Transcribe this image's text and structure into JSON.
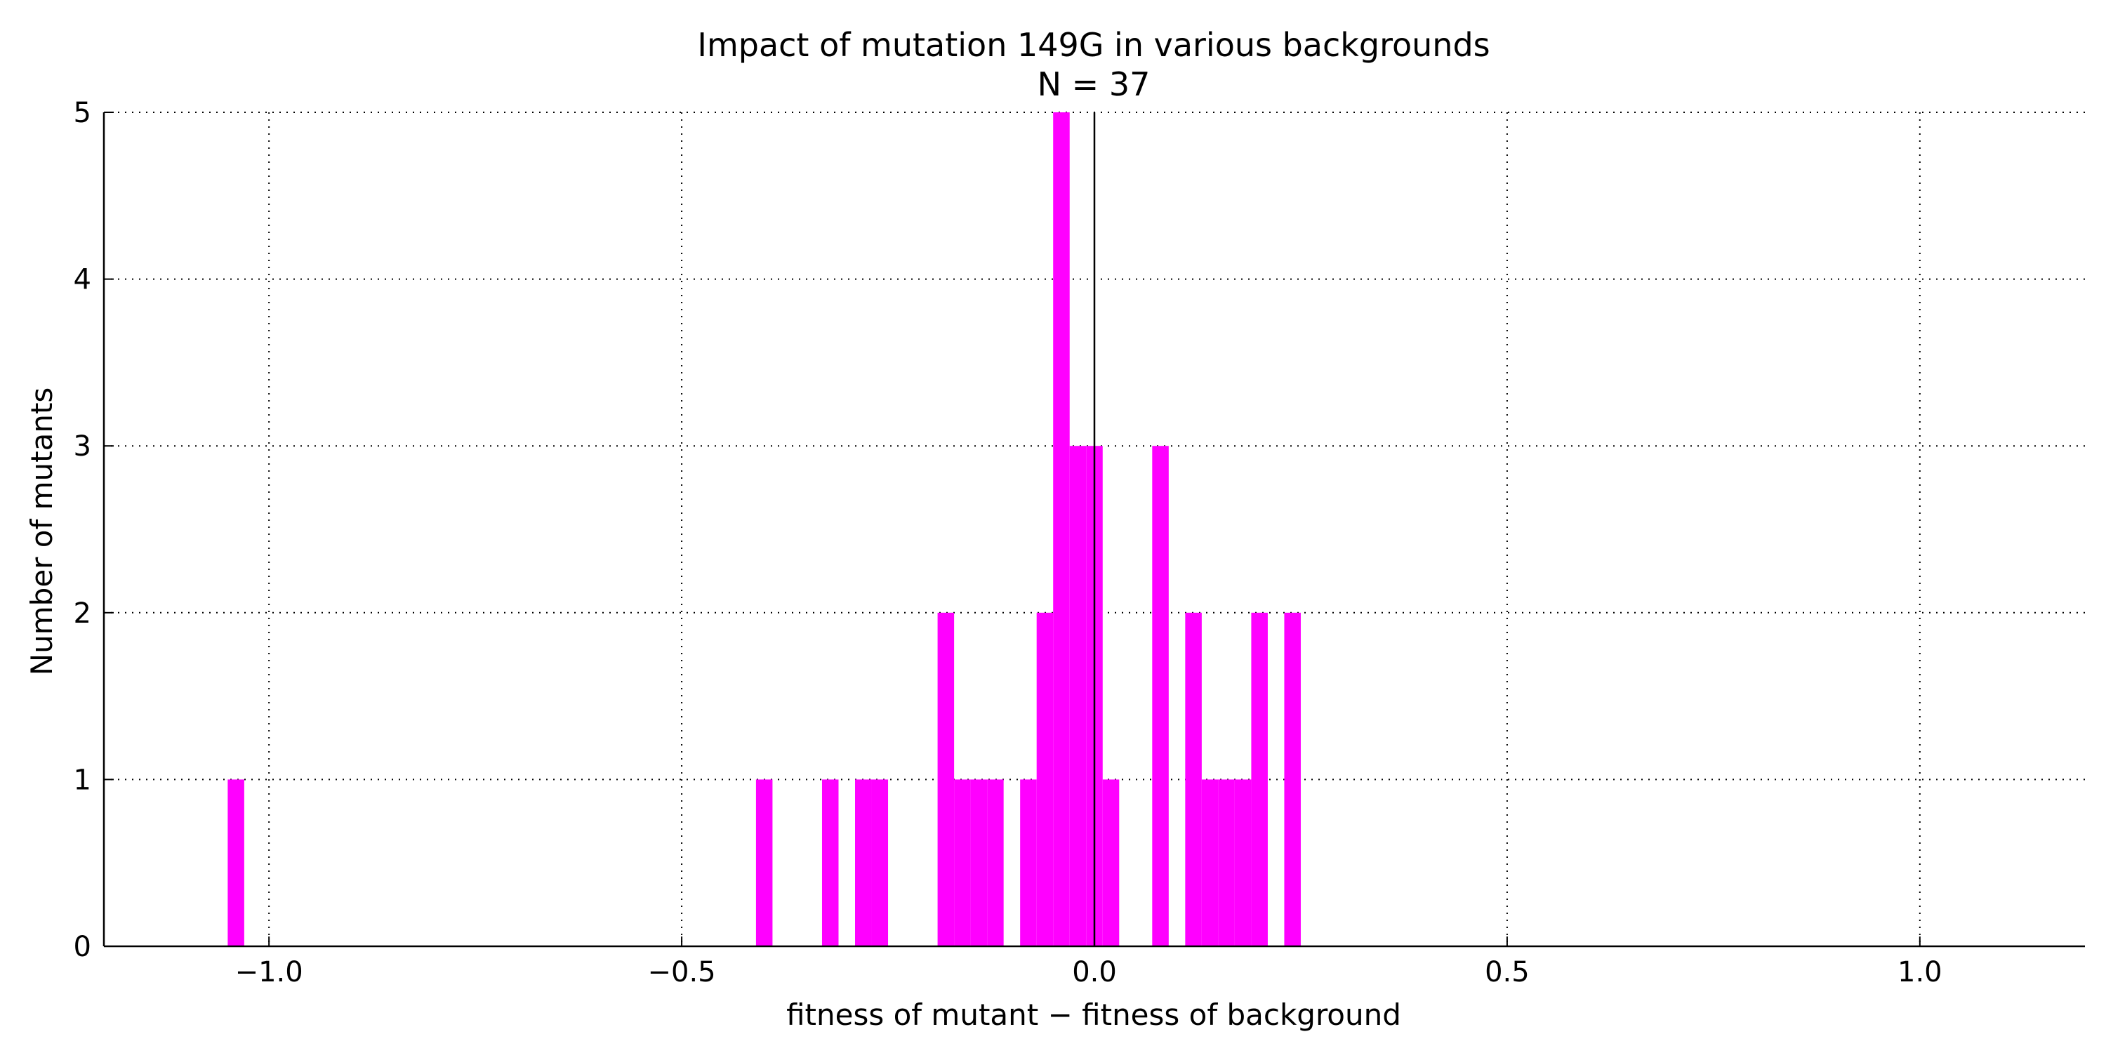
{
  "chart_data": {
    "type": "bar",
    "title": "Impact of mutation 149G in various backgrounds",
    "subtitle": "N = 37",
    "xlabel": "fitness of mutant  −  fitness of background",
    "ylabel": "Number of mutants",
    "xlim": [
      -1.2,
      1.2
    ],
    "ylim": [
      0,
      5
    ],
    "xticks": [
      -1.0,
      -0.5,
      0.0,
      0.5,
      1.0
    ],
    "xtick_labels": [
      "−1.0",
      "−0.5",
      "0.0",
      "0.5",
      "1.0"
    ],
    "yticks": [
      0,
      1,
      2,
      3,
      4,
      5
    ],
    "ytick_labels": [
      "0",
      "1",
      "2",
      "3",
      "4",
      "5"
    ],
    "grid": true,
    "vline_x": 0.0,
    "bar_width": 0.02,
    "bar_color": "#ff00ff",
    "bins": [
      {
        "x": -1.04,
        "count": 1
      },
      {
        "x": -0.4,
        "count": 1
      },
      {
        "x": -0.32,
        "count": 1
      },
      {
        "x": -0.28,
        "count": 1
      },
      {
        "x": -0.26,
        "count": 1
      },
      {
        "x": -0.18,
        "count": 2
      },
      {
        "x": -0.16,
        "count": 1
      },
      {
        "x": -0.14,
        "count": 1
      },
      {
        "x": -0.12,
        "count": 1
      },
      {
        "x": -0.08,
        "count": 1
      },
      {
        "x": -0.06,
        "count": 2
      },
      {
        "x": -0.04,
        "count": 5
      },
      {
        "x": -0.02,
        "count": 3
      },
      {
        "x": 0.0,
        "count": 3
      },
      {
        "x": 0.02,
        "count": 1
      },
      {
        "x": 0.08,
        "count": 3
      },
      {
        "x": 0.12,
        "count": 2
      },
      {
        "x": 0.14,
        "count": 1
      },
      {
        "x": 0.16,
        "count": 1
      },
      {
        "x": 0.18,
        "count": 1
      },
      {
        "x": 0.2,
        "count": 2
      },
      {
        "x": 0.24,
        "count": 2
      }
    ]
  }
}
